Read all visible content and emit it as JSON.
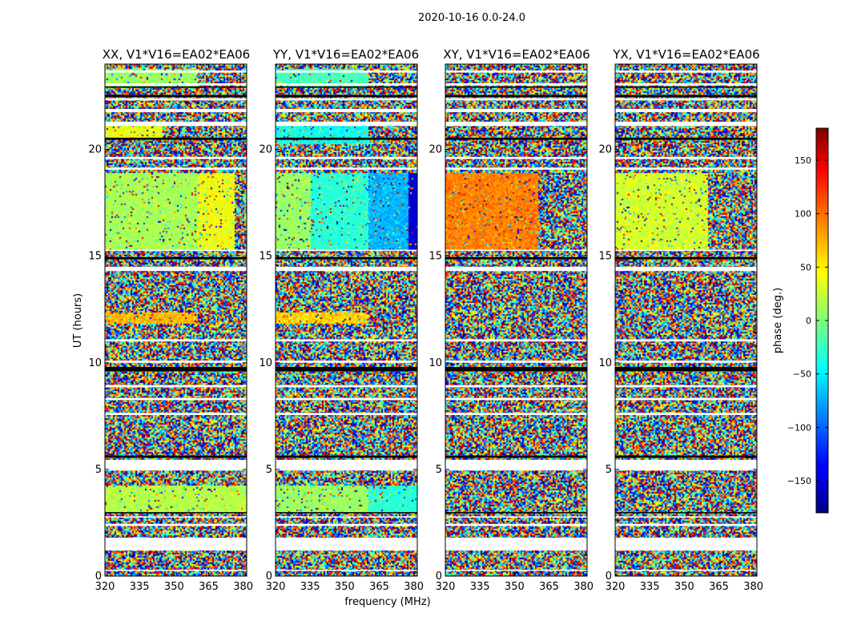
{
  "figure": {
    "suptitle": "2020-10-16 0.0-24.0"
  },
  "shared_axes": {
    "ylabel": "UT (hours)",
    "xlabel": "frequency (MHz)",
    "x_ticks": [
      320,
      335,
      350,
      365,
      380
    ],
    "y_ticks": [
      0,
      5,
      10,
      15,
      20
    ],
    "xlim": [
      320,
      381.5
    ],
    "ylim": [
      0,
      24
    ]
  },
  "chart_data": [
    {
      "type": "heatmap",
      "title": "XX, V1*V16=EA02*EA06",
      "quantity": "phase",
      "coherent_blocks": [
        {
          "ut": [
            15.3,
            18.9
          ],
          "mhz": [
            320,
            360
          ],
          "phase": 15
        },
        {
          "ut": [
            15.3,
            18.9
          ],
          "mhz": [
            360,
            376
          ],
          "phase": 40
        },
        {
          "ut": [
            11.9,
            12.4
          ],
          "mhz": [
            320,
            360
          ],
          "phase": 70
        },
        {
          "ut": [
            3.0,
            4.3
          ],
          "mhz": [
            320,
            381.5
          ],
          "phase": 20
        },
        {
          "ut": [
            23.0,
            23.8
          ],
          "mhz": [
            320,
            360
          ],
          "phase": 10
        },
        {
          "ut": [
            20.5,
            21.3
          ],
          "mhz": [
            320,
            345
          ],
          "phase": 40
        }
      ]
    },
    {
      "type": "heatmap",
      "title": "YY, V1*V16=EA02*EA06",
      "quantity": "phase",
      "coherent_blocks": [
        {
          "ut": [
            15.3,
            18.9
          ],
          "mhz": [
            320,
            335
          ],
          "phase": 10
        },
        {
          "ut": [
            15.3,
            18.9
          ],
          "mhz": [
            335,
            360
          ],
          "phase": -30
        },
        {
          "ut": [
            15.3,
            18.9
          ],
          "mhz": [
            360,
            377
          ],
          "phase": -70
        },
        {
          "ut": [
            15.3,
            18.9
          ],
          "mhz": [
            377,
            381.5
          ],
          "phase": -150
        },
        {
          "ut": [
            11.9,
            12.4
          ],
          "mhz": [
            320,
            360
          ],
          "phase": 60
        },
        {
          "ut": [
            3.0,
            4.3
          ],
          "mhz": [
            320,
            360
          ],
          "phase": 10
        },
        {
          "ut": [
            3.0,
            4.3
          ],
          "mhz": [
            360,
            381.5
          ],
          "phase": -30
        },
        {
          "ut": [
            20.3,
            21.3
          ],
          "mhz": [
            320,
            360
          ],
          "phase": -40
        },
        {
          "ut": [
            23.0,
            23.8
          ],
          "mhz": [
            320,
            360
          ],
          "phase": -20
        }
      ]
    },
    {
      "type": "heatmap",
      "title": "XY, V1*V16=EA02*EA06",
      "quantity": "phase",
      "coherent_blocks": [
        {
          "ut": [
            15.3,
            18.9
          ],
          "mhz": [
            320,
            360
          ],
          "phase": 90
        }
      ]
    },
    {
      "type": "heatmap",
      "title": "YX, V1*V16=EA02*EA06",
      "quantity": "phase",
      "coherent_blocks": [
        {
          "ut": [
            15.3,
            18.9
          ],
          "mhz": [
            320,
            360
          ],
          "phase": 30
        }
      ]
    }
  ],
  "flagged_ut_ranges": [
    [
      0.25,
      0.3
    ],
    [
      1.2,
      1.4
    ],
    [
      1.4,
      1.5
    ],
    [
      1.5,
      1.8
    ],
    [
      2.35,
      2.45
    ],
    [
      2.75,
      2.8
    ],
    [
      4.95,
      5.45
    ],
    [
      5.2,
      5.25
    ],
    [
      7.55,
      7.65
    ],
    [
      8.25,
      8.35
    ],
    [
      8.85,
      8.95
    ],
    [
      10.0,
      10.1
    ],
    [
      11.0,
      11.1
    ],
    [
      14.3,
      14.5
    ],
    [
      15.25,
      15.3
    ],
    [
      19.05,
      19.15
    ],
    [
      19.55,
      19.65
    ],
    [
      21.1,
      21.3
    ],
    [
      21.75,
      21.9
    ],
    [
      22.3,
      22.4
    ],
    [
      23.0,
      23.1
    ],
    [
      23.6,
      23.7
    ]
  ],
  "missing_ut_ranges": [
    [
      2.95,
      3.0
    ],
    [
      5.55,
      5.65
    ],
    [
      9.6,
      9.8
    ],
    [
      14.85,
      14.95
    ],
    [
      20.45,
      20.55
    ],
    [
      22.45,
      22.55
    ],
    [
      22.9,
      22.95
    ]
  ],
  "colorbar": {
    "label": "phase (deg.)",
    "range": [
      -180,
      180
    ],
    "ticks": [
      150,
      100,
      50,
      0,
      -50,
      -100,
      -150
    ],
    "tick_labels": [
      "150",
      "100",
      "50",
      "0",
      "−50",
      "−100",
      "−150"
    ],
    "colormap": "jet"
  }
}
